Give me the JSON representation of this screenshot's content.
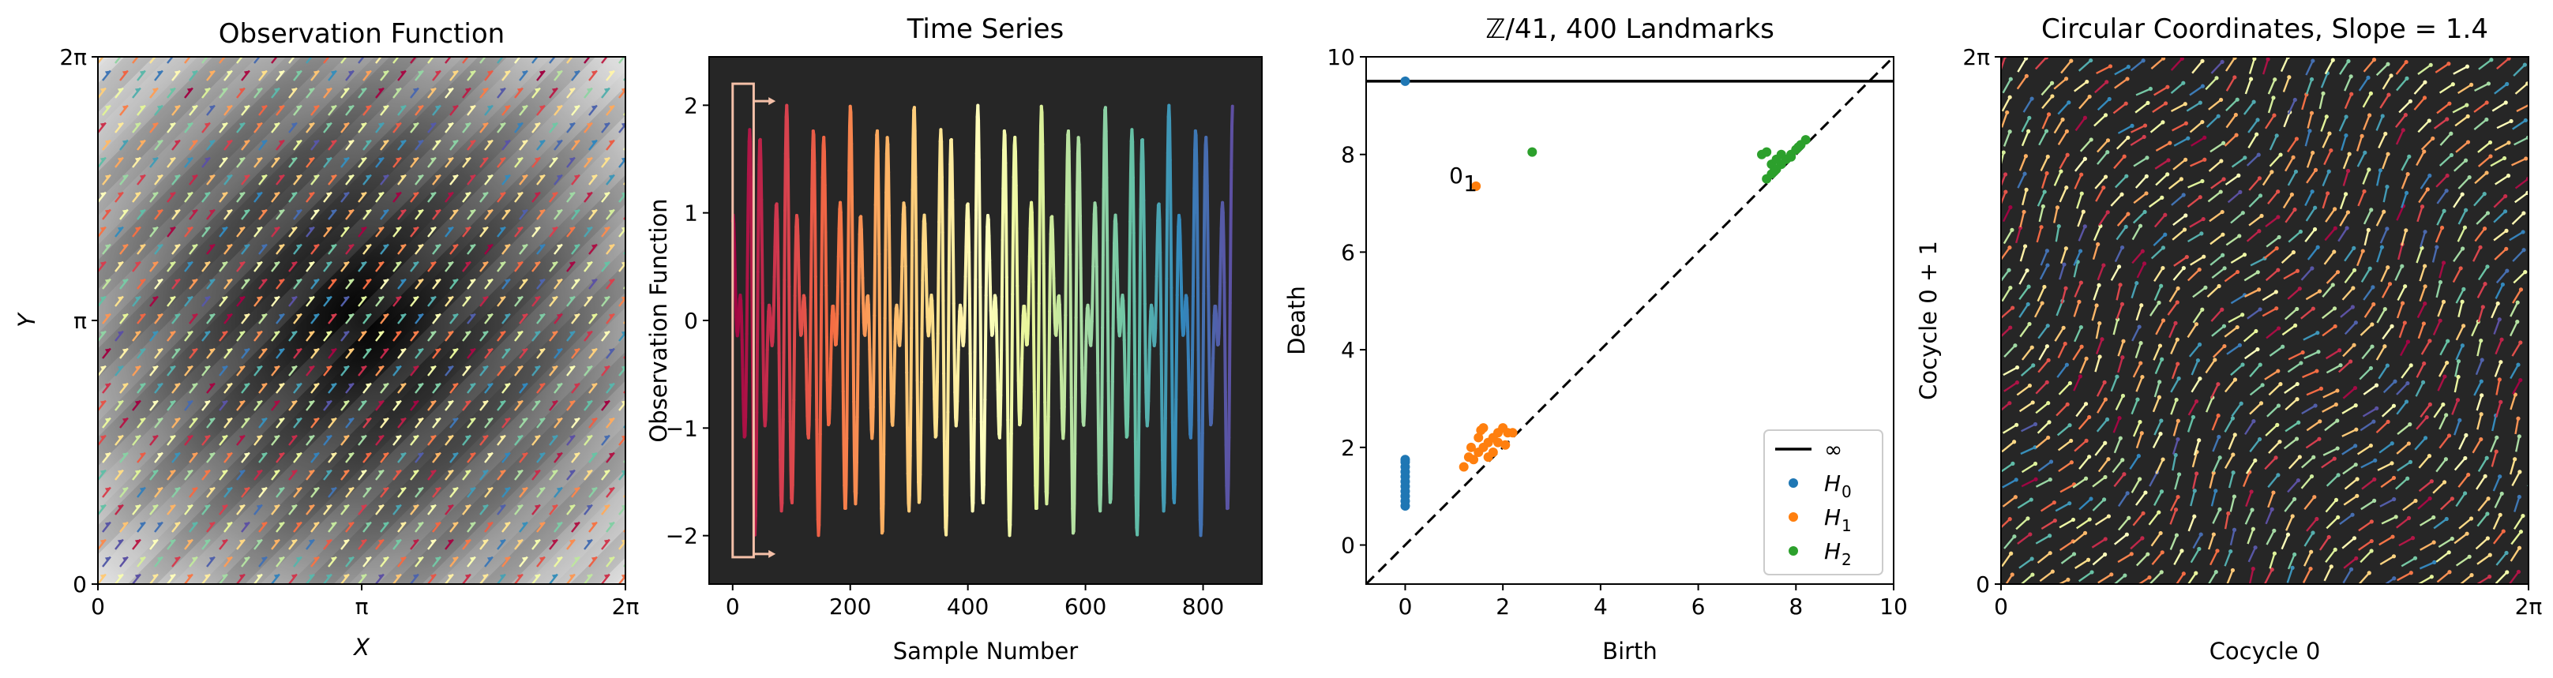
{
  "chart_data": [
    {
      "type": "heatmap",
      "title": "Observation Function",
      "xlabel": "X",
      "ylabel": "Y",
      "xticks": [
        "0",
        "π",
        "2π"
      ],
      "yticks": [
        "0",
        "π",
        "2π"
      ],
      "xlim": [
        0,
        6.2832
      ],
      "ylim": [
        0,
        6.2832
      ],
      "overlay": "arrows",
      "colormap": "gray",
      "arrow_colormap": "Spectral"
    },
    {
      "type": "line",
      "title": "Time Series",
      "xlabel": "Sample Number",
      "ylabel": "Observation Function",
      "xlim": [
        -40,
        900
      ],
      "ylim": [
        -2.45,
        2.45
      ],
      "xticks": [
        "0",
        "200",
        "400",
        "600",
        "800"
      ],
      "yticks": [
        "−2",
        "−1",
        "0",
        "1",
        "2"
      ],
      "background": "#262626",
      "colormap": "Spectral",
      "n_samples": 850,
      "window": {
        "x": [
          0,
          65
        ],
        "y": [
          -2.2,
          2.2
        ]
      }
    },
    {
      "type": "scatter",
      "title": "ℤ/41, 400 Landmarks",
      "xlabel": "Birth",
      "ylabel": "Death",
      "xlim": [
        -0.8,
        10
      ],
      "ylim": [
        -0.8,
        10
      ],
      "xticks": [
        "0",
        "2",
        "4",
        "6",
        "8",
        "10"
      ],
      "yticks": [
        "0",
        "2",
        "4",
        "6",
        "8",
        "10"
      ],
      "infinity_level": 9.5,
      "legend_position": "lower-right",
      "annotation": {
        "text": "0",
        "sub": "1",
        "x": 1.45,
        "y": 7.35
      },
      "legend": [
        "∞",
        "H",
        "H",
        "H"
      ],
      "legend_subs": [
        "",
        "0",
        "1",
        "2"
      ],
      "colors": {
        "H0": "#1f77b4",
        "H1": "#ff7f0e",
        "H2": "#2ca02c",
        "inf": "#000000"
      },
      "series": [
        {
          "name": "H0",
          "points": [
            [
              0,
              0.8
            ],
            [
              0,
              0.9
            ],
            [
              0,
              1.0
            ],
            [
              0,
              1.1
            ],
            [
              0,
              1.2
            ],
            [
              0,
              1.3
            ],
            [
              0,
              1.4
            ],
            [
              0,
              1.5
            ],
            [
              0,
              1.6
            ],
            [
              0,
              1.7
            ],
            [
              0,
              1.75
            ],
            [
              0,
              9.5
            ]
          ]
        },
        {
          "name": "H1",
          "points": [
            [
              1.45,
              7.35
            ],
            [
              1.2,
              1.6
            ],
            [
              1.4,
              1.75
            ],
            [
              1.5,
              1.9
            ],
            [
              1.6,
              2.0
            ],
            [
              1.7,
              2.1
            ],
            [
              1.8,
              2.2
            ],
            [
              1.9,
              2.3
            ],
            [
              2.0,
              2.4
            ],
            [
              2.1,
              2.3
            ],
            [
              1.5,
              2.2
            ],
            [
              1.6,
              2.4
            ],
            [
              1.35,
              2.0
            ],
            [
              1.8,
              1.9
            ],
            [
              2.05,
              2.05
            ],
            [
              1.3,
              1.8
            ],
            [
              1.9,
              2.1
            ],
            [
              1.55,
              2.35
            ],
            [
              1.7,
              1.8
            ],
            [
              2.2,
              2.3
            ]
          ]
        },
        {
          "name": "H2",
          "points": [
            [
              2.6,
              8.05
            ],
            [
              7.4,
              7.5
            ],
            [
              7.5,
              7.6
            ],
            [
              7.6,
              7.7
            ],
            [
              7.7,
              7.8
            ],
            [
              7.8,
              7.9
            ],
            [
              7.9,
              8.0
            ],
            [
              8.0,
              8.1
            ],
            [
              8.1,
              8.2
            ],
            [
              8.2,
              8.3
            ],
            [
              7.3,
              8.0
            ],
            [
              7.4,
              8.05
            ],
            [
              7.5,
              7.8
            ],
            [
              7.6,
              7.9
            ],
            [
              7.7,
              8.0
            ],
            [
              7.9,
              7.95
            ],
            [
              8.05,
              8.15
            ],
            [
              7.55,
              7.65
            ]
          ]
        }
      ]
    },
    {
      "type": "scatter",
      "title": "Circular Coordinates, Slope = 1.4",
      "xlabel": "Cocycle 0",
      "ylabel": "Cocycle 0 + 1",
      "xticks": [
        "0",
        "2π"
      ],
      "yticks": [
        "0",
        "2π"
      ],
      "xlim": [
        0,
        6.2832
      ],
      "ylim": [
        0,
        6.2832
      ],
      "background": "#262626",
      "overlay": "arrows",
      "arrow_colormap": "Spectral"
    }
  ]
}
